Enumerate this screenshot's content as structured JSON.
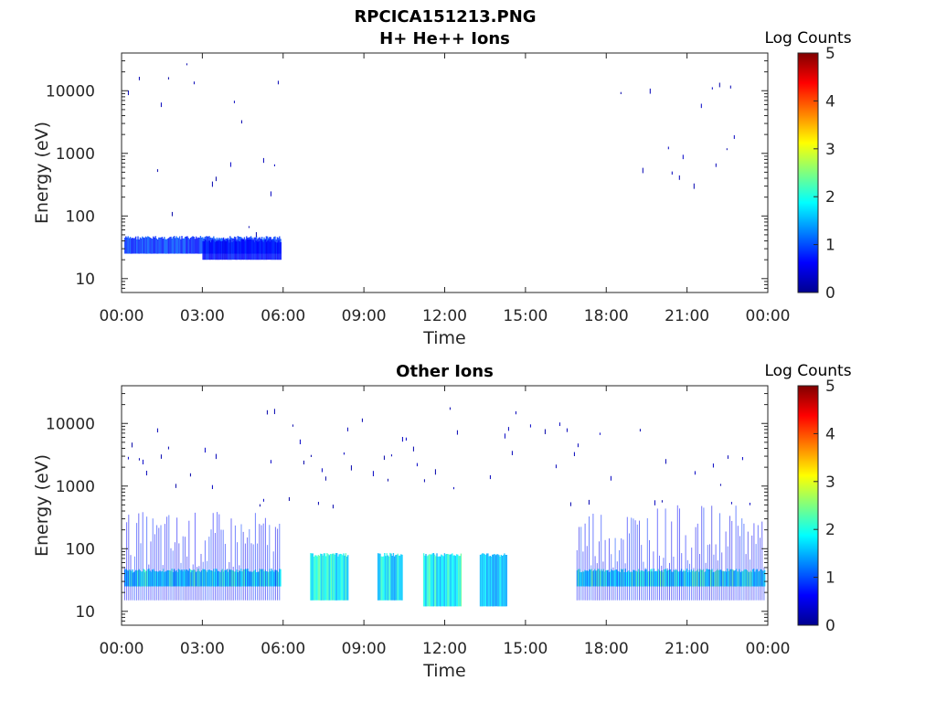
{
  "figure": {
    "title_line1": "RPCICA151213.PNG",
    "colors": {
      "axis": "#262626",
      "background": "#ffffff"
    }
  },
  "chart_data": [
    {
      "type": "heatmap",
      "title": "H+ He++ Ions",
      "xlabel": "Time",
      "ylabel": "Energy (eV)",
      "xlim": [
        "00:00",
        "24:00"
      ],
      "ylim": [
        6,
        40000
      ],
      "yscale": "log",
      "x_ticks": [
        "00:00",
        "03:00",
        "06:00",
        "09:00",
        "12:00",
        "15:00",
        "18:00",
        "21:00",
        "00:00"
      ],
      "y_ticks": [
        10,
        100,
        1000,
        10000
      ],
      "y_tick_labels": [
        "10",
        "100",
        "1000",
        "10000"
      ],
      "colorbar": {
        "label": "Log Counts",
        "range": [
          0,
          5
        ],
        "ticks": [
          "0",
          "1",
          "2",
          "3",
          "4",
          "5"
        ],
        "colormap": "jet"
      },
      "regions": [
        {
          "t0": 0.1,
          "t1": 5.9,
          "e0": 25,
          "e1": 45,
          "level": 0.9,
          "note": "dense band"
        },
        {
          "t0": 3.0,
          "t1": 5.9,
          "e0": 20,
          "e1": 40,
          "level": 0.7,
          "note": "dense band"
        },
        {
          "t0": 0.1,
          "t1": 5.9,
          "e0": 50,
          "e1": 30000,
          "level": 0.3,
          "note": "sparse"
        },
        {
          "t0": 16.9,
          "t1": 23.0,
          "e0": 300,
          "e1": 20000,
          "level": 0.3,
          "note": "sparse"
        }
      ]
    },
    {
      "type": "heatmap",
      "title": "Other Ions",
      "xlabel": "Time",
      "ylabel": "Energy (eV)",
      "xlim": [
        "00:00",
        "24:00"
      ],
      "ylim": [
        6,
        40000
      ],
      "yscale": "log",
      "x_ticks": [
        "00:00",
        "03:00",
        "06:00",
        "09:00",
        "12:00",
        "15:00",
        "18:00",
        "21:00",
        "00:00"
      ],
      "y_ticks": [
        10,
        100,
        1000,
        10000
      ],
      "y_tick_labels": [
        "10",
        "100",
        "1000",
        "10000"
      ],
      "colorbar": {
        "label": "Log Counts",
        "range": [
          0,
          5
        ],
        "ticks": [
          "0",
          "1",
          "2",
          "3",
          "4",
          "5"
        ],
        "colormap": "jet"
      },
      "regions": [
        {
          "t0": 0.1,
          "t1": 5.9,
          "e0": 25,
          "e1": 45,
          "level": 1.8,
          "note": "band"
        },
        {
          "t0": 0.1,
          "t1": 5.9,
          "e0": 15,
          "e1": 400,
          "level": 0.8,
          "note": "spread"
        },
        {
          "t0": 7.0,
          "t1": 8.4,
          "e0": 15,
          "e1": 80,
          "level": 1.9
        },
        {
          "t0": 9.5,
          "t1": 10.4,
          "e0": 15,
          "e1": 80,
          "level": 1.8
        },
        {
          "t0": 11.2,
          "t1": 12.6,
          "e0": 12,
          "e1": 80,
          "level": 1.9
        },
        {
          "t0": 13.3,
          "t1": 14.3,
          "e0": 12,
          "e1": 80,
          "level": 1.6
        },
        {
          "t0": 16.9,
          "t1": 23.9,
          "e0": 25,
          "e1": 45,
          "level": 1.9,
          "note": "band"
        },
        {
          "t0": 16.9,
          "t1": 23.9,
          "e0": 15,
          "e1": 500,
          "level": 0.8,
          "note": "spread"
        },
        {
          "t0": 0.1,
          "t1": 23.9,
          "e0": 500,
          "e1": 20000,
          "level": 0.3,
          "note": "sparse"
        }
      ]
    }
  ]
}
